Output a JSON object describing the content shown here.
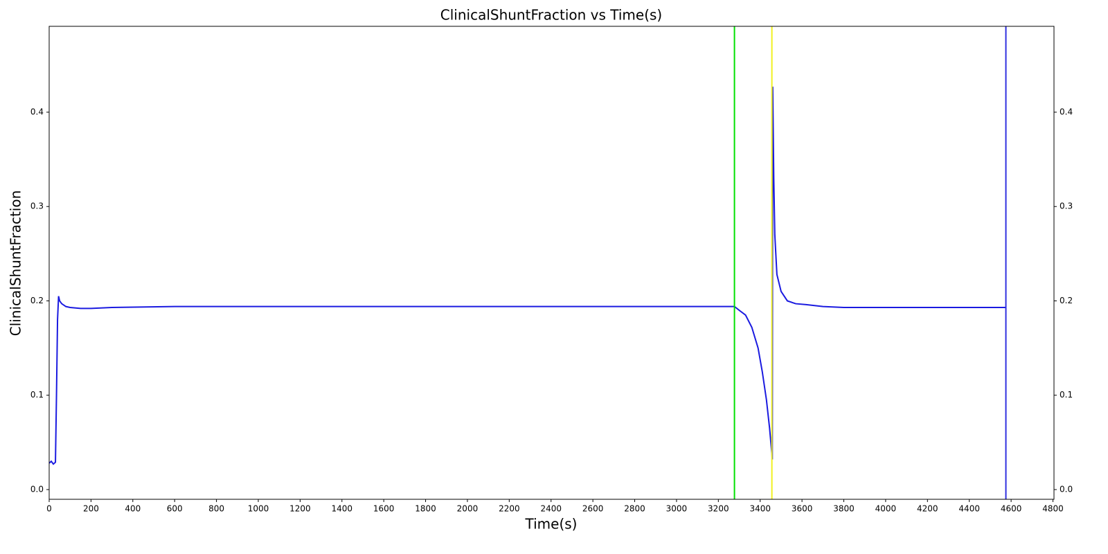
{
  "chart_data": {
    "type": "line",
    "title": "ClinicalShuntFraction vs Time(s)",
    "x_label": "Time(s)",
    "y_label": "ClinicalShuntFraction",
    "x": [
      0,
      10,
      20,
      30,
      35,
      40,
      45,
      50,
      60,
      80,
      100,
      150,
      200,
      300,
      600,
      1000,
      2000,
      3000,
      3277,
      3300,
      3330,
      3360,
      3390,
      3410,
      3430,
      3445,
      3455,
      3458,
      3460,
      3465,
      3470,
      3480,
      3500,
      3530,
      3570,
      3620,
      3700,
      3800,
      4200,
      4575
    ],
    "series": [
      {
        "name": "ClinicalShuntFraction",
        "color": "#1a1ae0",
        "values": [
          0.028,
          0.03,
          0.027,
          0.029,
          0.1,
          0.18,
          0.205,
          0.2,
          0.197,
          0.194,
          0.193,
          0.192,
          0.192,
          0.193,
          0.194,
          0.194,
          0.194,
          0.194,
          0.194,
          0.19,
          0.185,
          0.172,
          0.15,
          0.125,
          0.095,
          0.065,
          0.04,
          0.032,
          0.427,
          0.33,
          0.27,
          0.228,
          0.21,
          0.2,
          0.197,
          0.196,
          0.194,
          0.193,
          0.193,
          0.193
        ]
      }
    ],
    "vlines": [
      {
        "x": 3277,
        "color": "#00e000"
      },
      {
        "x": 3456,
        "color": "#f0f020"
      },
      {
        "x": 4575,
        "color": "#3030e0"
      }
    ],
    "xlim": [
      0,
      4805
    ],
    "ylim": [
      -0.0103,
      0.491
    ],
    "xticks": [
      0,
      200,
      400,
      600,
      800,
      1000,
      1200,
      1400,
      1600,
      1800,
      2000,
      2200,
      2400,
      2600,
      2800,
      3000,
      3200,
      3400,
      3600,
      3800,
      4000,
      4200,
      4400,
      4600,
      4800
    ],
    "yticks": [
      {
        "value": 0,
        "label": "0.0"
      },
      0.1,
      0.2,
      0.3,
      0.4
    ],
    "mirror_y_ticks": true,
    "grid": false
  }
}
